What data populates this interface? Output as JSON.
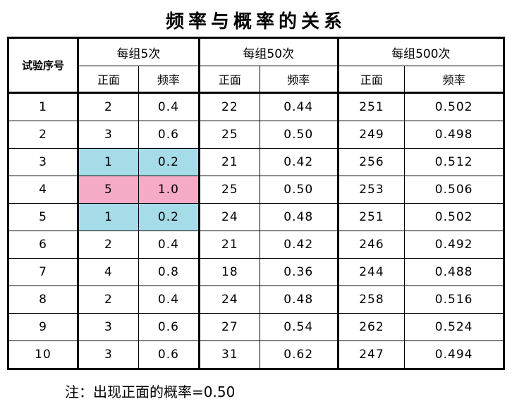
{
  "header": {
    "title": "频率与概率的关系"
  },
  "table": {
    "corner": "试验序号",
    "groups": [
      "每组5次",
      "每组50次",
      "每组500次"
    ],
    "subheaders": [
      "正面",
      "频率",
      "正面",
      "频率",
      "正面",
      "频率"
    ],
    "rows": [
      [
        "1",
        "2",
        "0.4",
        "22",
        "0.44",
        "251",
        "0.502"
      ],
      [
        "2",
        "3",
        "0.6",
        "25",
        "0.50",
        "249",
        "0.498"
      ],
      [
        "3",
        "1",
        "0.2",
        "21",
        "0.42",
        "256",
        "0.512"
      ],
      [
        "4",
        "5",
        "1.0",
        "25",
        "0.50",
        "253",
        "0.506"
      ],
      [
        "5",
        "1",
        "0.2",
        "24",
        "0.48",
        "251",
        "0.502"
      ],
      [
        "6",
        "2",
        "0.4",
        "21",
        "0.42",
        "246",
        "0.492"
      ],
      [
        "7",
        "4",
        "0.8",
        "18",
        "0.36",
        "244",
        "0.488"
      ],
      [
        "8",
        "2",
        "0.4",
        "24",
        "0.48",
        "258",
        "0.516"
      ],
      [
        "9",
        "3",
        "0.6",
        "27",
        "0.54",
        "262",
        "0.524"
      ],
      [
        "10",
        "3",
        "0.6",
        "31",
        "0.62",
        "247",
        "0.494"
      ]
    ]
  },
  "note": "注：出现正面的概率=0.50"
}
